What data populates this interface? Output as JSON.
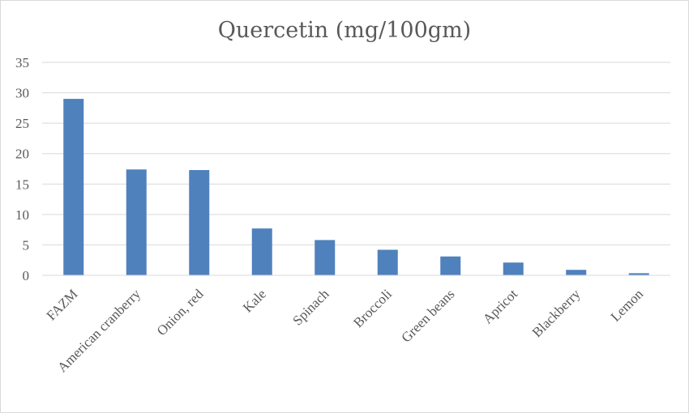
{
  "chart_data": {
    "type": "bar",
    "title": "Quercetin (mg/100gm)",
    "xlabel": "",
    "ylabel": "",
    "categories": [
      "FAZM",
      "American cranberry",
      "Onion, red",
      "Kale",
      "Spinach",
      "Broccoli",
      "Green beans",
      "Apricot",
      "Blackberry",
      "Lemon"
    ],
    "values": [
      29,
      17.4,
      17.3,
      7.7,
      5.8,
      4.2,
      3.1,
      2.1,
      0.9,
      0.35
    ],
    "ylim": [
      0,
      35
    ],
    "yticks": [
      "0",
      "5",
      "10",
      "15",
      "20",
      "25",
      "30",
      "35"
    ],
    "grid": true,
    "legend": "none",
    "bar_color": "#4f81bd"
  }
}
